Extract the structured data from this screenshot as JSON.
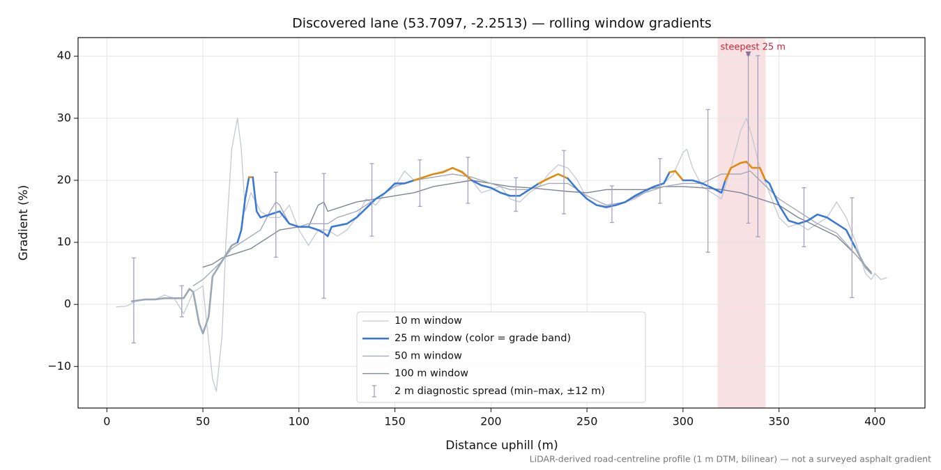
{
  "chart_data": {
    "type": "line",
    "title": "Discovered lane (53.7097, -2.2513) — rolling window gradients",
    "x_label": "Distance uphill (m)",
    "y_label": "Gradient (%)",
    "footnote": "LiDAR-derived road-centreline profile (1 m DTM, bilinear) — not a surveyed asphalt gradient",
    "xlim": [
      -15,
      426
    ],
    "ylim": [
      -16.7,
      43
    ],
    "xticks": [
      0,
      50,
      100,
      150,
      200,
      250,
      300,
      350,
      400
    ],
    "yticks": [
      {
        "value": -10,
        "label": "−10"
      },
      0,
      10,
      20,
      30,
      40
    ],
    "grid": true,
    "legend": "lower center",
    "series": [
      {
        "name": "10 m window",
        "color": "#c3c8d2",
        "width": 1.3,
        "x": [
          5,
          10,
          15,
          20,
          25,
          30,
          35,
          40,
          45,
          50,
          55,
          57,
          60,
          62,
          65,
          68,
          70,
          72,
          75,
          80,
          85,
          90,
          95,
          100,
          105,
          110,
          115,
          120,
          125,
          130,
          135,
          140,
          145,
          150,
          155,
          160,
          165,
          170,
          175,
          180,
          185,
          190,
          195,
          200,
          205,
          210,
          215,
          220,
          225,
          230,
          235,
          240,
          245,
          250,
          255,
          260,
          265,
          270,
          275,
          280,
          285,
          290,
          295,
          300,
          302,
          305,
          310,
          315,
          320,
          325,
          330,
          333,
          336,
          340,
          345,
          350,
          355,
          360,
          365,
          370,
          375,
          380,
          385,
          390,
          395,
          398,
          400,
          403,
          406
        ],
        "values": [
          -0.4,
          -0.3,
          0.5,
          0.8,
          0.8,
          1.5,
          1,
          -1.5,
          2,
          3,
          -12,
          -14,
          -5,
          10,
          25,
          30,
          25,
          15,
          18,
          15,
          14,
          14,
          16,
          12,
          9.5,
          12,
          12,
          11,
          12,
          14,
          17,
          16,
          18,
          19,
          21.5,
          20,
          20.5,
          21,
          21.5,
          22,
          21.5,
          20,
          18,
          18.5,
          19,
          17,
          16.5,
          18,
          19,
          21,
          22.5,
          22,
          20,
          17,
          16,
          15.5,
          16,
          16.5,
          17,
          18,
          19,
          19.5,
          21,
          24.5,
          25,
          22,
          19,
          18,
          17,
          22,
          28,
          30,
          27,
          22,
          18,
          14,
          12.5,
          13,
          12,
          13,
          14,
          16.5,
          14,
          10,
          5,
          4,
          5,
          4,
          4.3
        ]
      },
      {
        "name": "25 m window (color = grade band)",
        "color": "#3a78d6",
        "width": 2.6,
        "x": [
          13,
          20,
          25,
          30,
          35,
          40,
          43,
          45,
          48,
          50,
          53,
          55,
          60,
          65,
          68,
          70,
          72,
          74,
          76,
          78,
          80,
          85,
          90,
          95,
          100,
          105,
          110,
          113,
          115,
          117,
          125,
          130,
          135,
          140,
          145,
          150,
          155,
          160,
          165,
          170,
          175,
          180,
          185,
          190,
          195,
          200,
          205,
          210,
          215,
          220,
          225,
          230,
          235,
          240,
          245,
          250,
          255,
          260,
          265,
          270,
          275,
          280,
          285,
          290,
          293,
          296,
          300,
          305,
          310,
          315,
          320,
          322,
          325,
          330,
          333,
          336,
          340,
          343,
          345,
          350,
          355,
          360,
          365,
          370,
          375,
          380,
          385,
          390,
          395,
          398
        ],
        "values": [
          0.5,
          0.8,
          0.8,
          1,
          1,
          1,
          2.5,
          2,
          -3,
          -4.7,
          -2,
          4.5,
          7,
          9.5,
          10,
          12,
          17,
          20.5,
          20.5,
          15,
          14,
          14.5,
          15,
          13,
          12.5,
          12.5,
          12,
          11.5,
          11,
          12.5,
          13,
          14,
          15.5,
          17,
          18,
          19.5,
          19.5,
          20,
          20.5,
          21,
          21.3,
          22,
          21.3,
          20,
          19.2,
          18.8,
          18,
          17.5,
          17.5,
          18.5,
          19.5,
          20.3,
          21,
          20.3,
          18.5,
          17,
          16,
          15.7,
          16,
          16.5,
          17.5,
          18.3,
          19,
          19.5,
          21.3,
          21.5,
          20,
          20,
          19.5,
          18.8,
          18,
          20,
          22,
          22.8,
          23,
          22,
          22,
          20,
          19.5,
          16,
          13.5,
          13,
          13.5,
          14.5,
          14,
          13,
          12,
          9,
          6,
          5
        ],
        "segment_colors": [
          "#9aa8b5",
          "#9aa8b5",
          "#9aa8b5",
          "#9aa8b5",
          "#9aa8b5",
          "#9aa8b5",
          "#9aa8b5",
          "#9aa8b5",
          "#9aa8b5",
          "#9aa8b5",
          "#9aa8b5",
          "#9aa8b5",
          "#9aa8b5",
          "#9aa8b5",
          "#3a78d6",
          "#3a78d6",
          "#3a78d6",
          "#e08a0b",
          "#3a78d6",
          "#3a78d6",
          "#3a78d6",
          "#3a78d6",
          "#3a78d6",
          "#3a78d6",
          "#3a78d6",
          "#3a78d6",
          "#3a78d6",
          "#3a78d6",
          "#3a78d6",
          "#3a78d6",
          "#3a78d6",
          "#3a78d6",
          "#3a78d6",
          "#3a78d6",
          "#3a78d6",
          "#3a78d6",
          "#3a78d6",
          "#e08a0b",
          "#e08a0b",
          "#e08a0b",
          "#e08a0b",
          "#e08a0b",
          "#e08a0b",
          "#3a78d6",
          "#3a78d6",
          "#3a78d6",
          "#3a78d6",
          "#3a78d6",
          "#3a78d6",
          "#3a78d6",
          "#e08a0b",
          "#e08a0b",
          "#e08a0b",
          "#3a78d6",
          "#3a78d6",
          "#3a78d6",
          "#3a78d6",
          "#3a78d6",
          "#3a78d6",
          "#3a78d6",
          "#3a78d6",
          "#3a78d6",
          "#3a78d6",
          "#3a78d6",
          "#e08a0b",
          "#e08a0b",
          "#3a78d6",
          "#3a78d6",
          "#3a78d6",
          "#3a78d6",
          "#3a78d6",
          "#e08a0b",
          "#e08a0b",
          "#e08a0b",
          "#e08a0b",
          "#e08a0b",
          "#e08a0b",
          "#3a78d6",
          "#3a78d6",
          "#3a78d6",
          "#3a78d6",
          "#3a78d6",
          "#3a78d6",
          "#3a78d6",
          "#3a78d6",
          "#3a78d6",
          "#3a78d6",
          "#9aa8b5",
          "#9aa8b5",
          "#9aa8b5"
        ]
      },
      {
        "name": "50 m window",
        "color": "#a4a9b6",
        "width": 1.4,
        "x": [
          45,
          50,
          55,
          60,
          65,
          70,
          75,
          80,
          85,
          88,
          90,
          95,
          100,
          105,
          110,
          115,
          120,
          125,
          130,
          140,
          150,
          160,
          170,
          180,
          190,
          200,
          210,
          220,
          230,
          240,
          250,
          260,
          270,
          280,
          290,
          300,
          310,
          320,
          330,
          335,
          340,
          350,
          360,
          370,
          380,
          390,
          398
        ],
        "values": [
          3,
          4,
          5.5,
          7,
          9,
          10,
          11,
          12,
          15,
          16.5,
          16,
          13,
          12.5,
          13,
          13,
          13,
          14,
          14.5,
          15,
          17,
          19,
          20,
          20.5,
          21,
          20.5,
          19.5,
          18.5,
          18.5,
          19.5,
          19.5,
          17.5,
          16,
          16.5,
          18,
          19,
          19.5,
          19.5,
          21,
          21,
          21.5,
          20,
          17,
          15,
          13,
          11.5,
          8,
          5
        ]
      },
      {
        "name": "100 m window",
        "color": "#7f8494",
        "width": 1.4,
        "x": [
          50,
          55,
          60,
          65,
          70,
          75,
          80,
          85,
          90,
          100,
          105,
          110,
          113,
          115,
          120,
          130,
          140,
          150,
          160,
          170,
          180,
          190,
          200,
          210,
          220,
          230,
          240,
          250,
          260,
          270,
          280,
          290,
          300,
          310,
          320,
          330,
          340,
          350,
          360,
          370,
          380,
          390,
          398
        ],
        "values": [
          6,
          6.5,
          7.5,
          8,
          8.5,
          9,
          10,
          11,
          12,
          12.5,
          12.5,
          16,
          16.5,
          15,
          15.5,
          16.5,
          17,
          17.5,
          18,
          19,
          19.5,
          20,
          19.5,
          19,
          18.8,
          18.5,
          18.2,
          18,
          18.5,
          18.5,
          18.5,
          19,
          19,
          18.8,
          18.5,
          18,
          17,
          16,
          14,
          12.5,
          11,
          8,
          5.2
        ]
      }
    ],
    "error_bars": {
      "name": "2 m diagnostic spread (min–max, ±12 m)",
      "color": "#a49fc0",
      "x": [
        14,
        39,
        88,
        113,
        138,
        163,
        188,
        213,
        238,
        263,
        288,
        313,
        334,
        339,
        363,
        388
      ],
      "low": [
        -6.2,
        -2,
        7.6,
        1,
        11,
        15.8,
        16.3,
        15,
        14.6,
        13.2,
        16.3,
        8.4,
        13.1,
        10.9,
        9.3,
        1.1
      ],
      "high": [
        7.5,
        3,
        21.3,
        21.1,
        22.7,
        23.3,
        23.7,
        20.4,
        24.8,
        19.1,
        23.5,
        31.4,
        40.2,
        40.1,
        18.8,
        17.2
      ]
    },
    "span": {
      "x": [
        318,
        343
      ],
      "color": "#e8a8b0"
    },
    "annotation": {
      "text": "steepest 25 m",
      "x": 334,
      "y": 40.3,
      "color": "#c8283a",
      "marker_color": "#8a6f9a"
    }
  }
}
